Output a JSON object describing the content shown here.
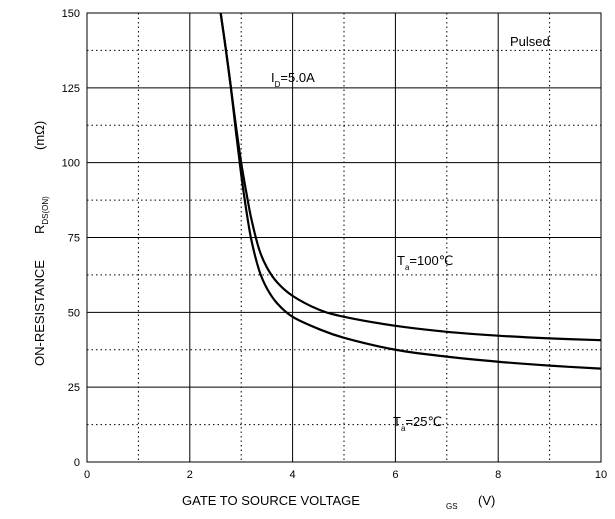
{
  "chart_data": {
    "type": "line",
    "xlabel": {
      "main": "GATE TO SOURCE VOLTAGE",
      "sub": "GS",
      "unit": "(V)"
    },
    "ylabel": {
      "main": "ON-RESISTANCE",
      "symbol": "R",
      "sub": "DS(ON)",
      "unit": "(mΩ)"
    },
    "xlim": [
      0,
      10
    ],
    "ylim": [
      0,
      150
    ],
    "xticks": [
      "0",
      "2",
      "4",
      "6",
      "8",
      "10"
    ],
    "yticks": [
      "0",
      "25",
      "50",
      "75",
      "100",
      "125",
      "150"
    ],
    "grid": {
      "major_solid": true,
      "minor_dotted": true
    },
    "annotations": {
      "pulsed": "Pulsed",
      "id": {
        "main": "I",
        "sub": "D",
        "rest": "=5.0A"
      },
      "ta100": {
        "main": "T",
        "sub": "a",
        "rest": "=100℃"
      },
      "ta25": {
        "main": "T",
        "sub": "a",
        "rest": "=25℃"
      }
    },
    "series": [
      {
        "name": "Ta=100℃",
        "x": [
          2.6,
          2.7,
          2.8,
          2.9,
          3.0,
          3.1,
          3.2,
          3.35,
          3.5,
          3.7,
          4.0,
          4.5,
          5.0,
          6.0,
          7.0,
          8.0,
          9.0,
          10.0
        ],
        "y": [
          150,
          138,
          125,
          112,
          100,
          90,
          81,
          71,
          65,
          60,
          55.5,
          51,
          48.5,
          45.5,
          43.5,
          42.2,
          41.3,
          40.7
        ]
      },
      {
        "name": "Ta=25℃",
        "x": [
          2.6,
          2.7,
          2.8,
          2.9,
          3.0,
          3.1,
          3.2,
          3.35,
          3.5,
          3.7,
          4.0,
          4.5,
          5.0,
          6.0,
          7.0,
          8.0,
          9.0,
          10.0
        ],
        "y": [
          150,
          138,
          125,
          110,
          96,
          84,
          74,
          64,
          58,
          53,
          48.5,
          44.5,
          41.5,
          37.5,
          35.2,
          33.5,
          32.2,
          31.2
        ]
      }
    ]
  }
}
